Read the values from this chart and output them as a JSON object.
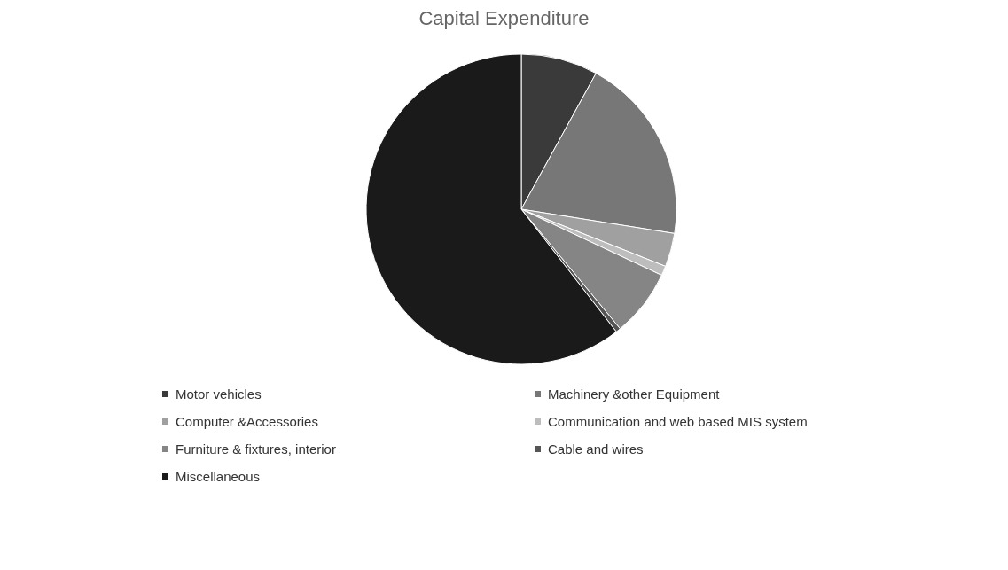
{
  "chart_data": {
    "type": "pie",
    "title": "Capital Expenditure",
    "categories": [
      "Motor vehicles",
      "Machinery &other Equipment",
      "Computer &Accessories",
      "Communication and web based MIS system",
      "Furniture & fixtures, interior",
      "Cable and wires",
      "Miscellaneous"
    ],
    "values": [
      8,
      19.5,
      3.5,
      1,
      7,
      0.5,
      60.5
    ],
    "colors": [
      "#3a3a3a",
      "#777777",
      "#a0a0a0",
      "#bdbdbd",
      "#858585",
      "#555555",
      "#1a1a1a"
    ],
    "legend": "bottom"
  }
}
